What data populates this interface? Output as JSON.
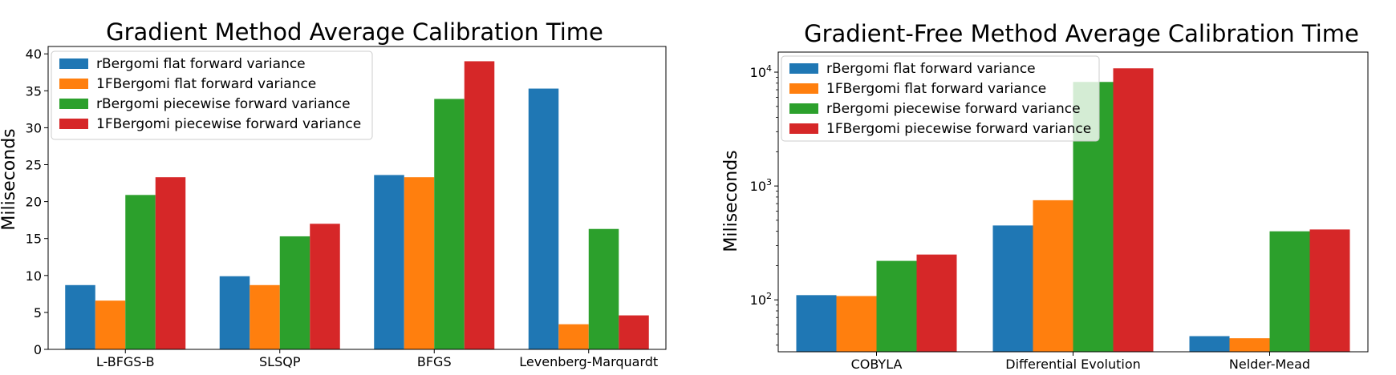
{
  "chart_data": [
    {
      "type": "bar",
      "title": "Gradient Method Average Calibration Time",
      "xlabel": "",
      "ylabel": "Miliseconds",
      "scale": "linear",
      "ylim": [
        0,
        41
      ],
      "yticks": [
        0,
        5,
        10,
        15,
        20,
        25,
        30,
        35,
        40
      ],
      "ytick_labels": [
        "0",
        "5",
        "10",
        "15",
        "20",
        "25",
        "30",
        "35",
        "40"
      ],
      "categories": [
        "L-BFGS-B",
        "SLSQP",
        "BFGS",
        "Levenberg-Marquardt"
      ],
      "legend_position": "top-left",
      "grid": false,
      "series": [
        {
          "name": "rBergomi flat forward variance",
          "color": "#1f77b4",
          "values": [
            8.7,
            9.9,
            23.6,
            35.3
          ]
        },
        {
          "name": "1FBergomi flat forward variance",
          "color": "#ff7f0e",
          "values": [
            6.6,
            8.7,
            23.3,
            3.4
          ]
        },
        {
          "name": "rBergomi piecewise forward variance",
          "color": "#2ca02c",
          "values": [
            20.9,
            15.3,
            33.9,
            16.3
          ]
        },
        {
          "name": "1FBergomi piecewise forward variance",
          "color": "#d62728",
          "values": [
            23.3,
            17.0,
            39.0,
            4.6
          ]
        }
      ]
    },
    {
      "type": "bar",
      "title": "Gradient-Free Method Average Calibration Time",
      "xlabel": "",
      "ylabel": "Miliseconds",
      "scale": "log",
      "ylim": [
        35,
        15000
      ],
      "yticks": [
        100,
        1000,
        10000
      ],
      "ytick_labels": [
        "10^2",
        "10^3",
        "10^4"
      ],
      "categories": [
        "COBYLA",
        "Differential Evolution",
        "Nelder-Mead"
      ],
      "legend_position": "top-left",
      "grid": false,
      "series": [
        {
          "name": "rBergomi flat forward variance",
          "color": "#1f77b4",
          "values": [
            110,
            450,
            48
          ]
        },
        {
          "name": "1FBergomi flat forward variance",
          "color": "#ff7f0e",
          "values": [
            108,
            750,
            46
          ]
        },
        {
          "name": "rBergomi piecewise forward variance",
          "color": "#2ca02c",
          "values": [
            220,
            8200,
            400
          ]
        },
        {
          "name": "1FBergomi piecewise forward variance",
          "color": "#d62728",
          "values": [
            250,
            10800,
            415
          ]
        }
      ]
    }
  ]
}
